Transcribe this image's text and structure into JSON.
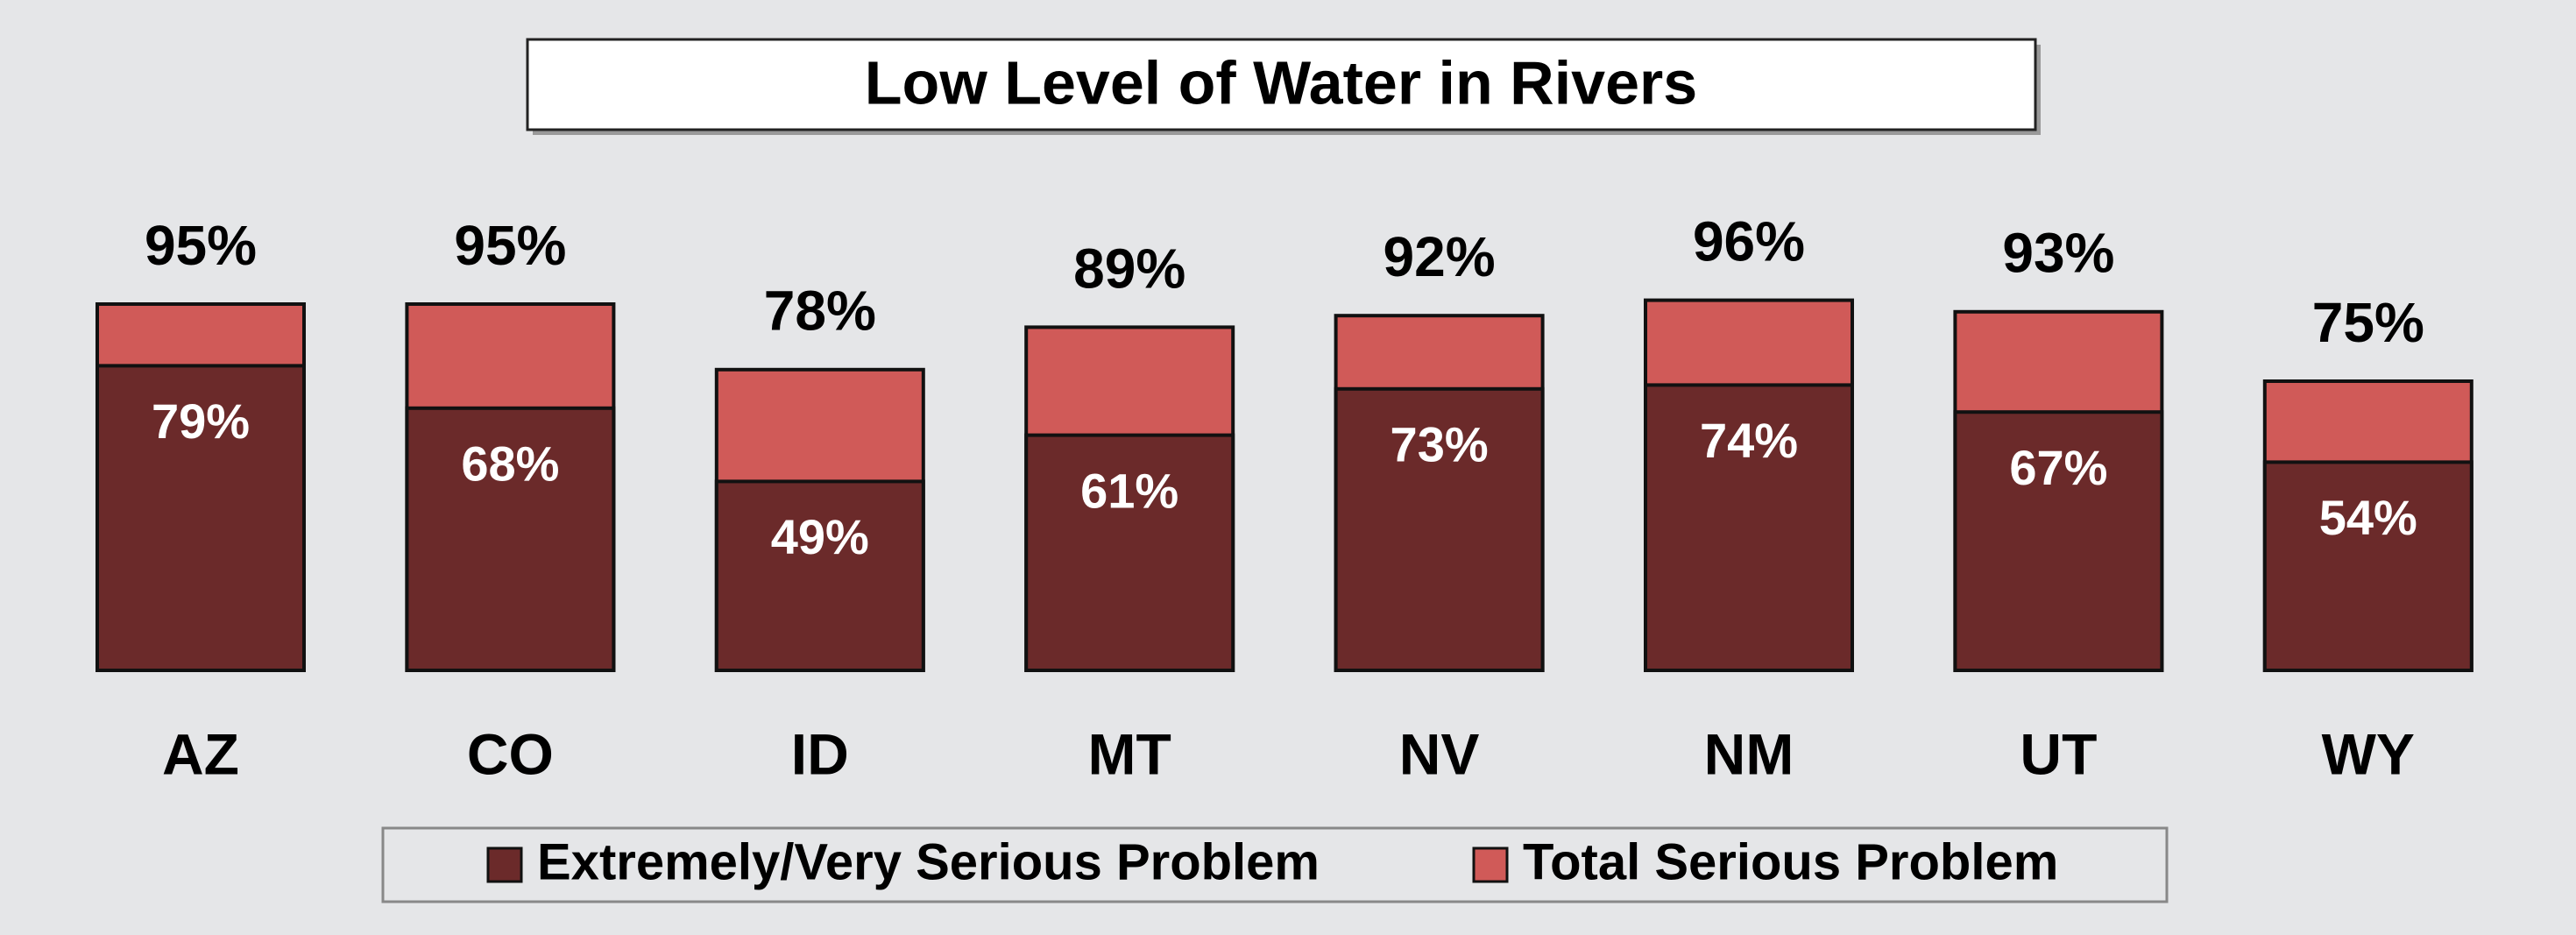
{
  "chart_data": {
    "type": "bar",
    "title": "Low Level of Water in Rivers",
    "categories": [
      "AZ",
      "CO",
      "ID",
      "MT",
      "NV",
      "NM",
      "UT",
      "WY"
    ],
    "series": [
      {
        "name": "Extremely/Very Serious Problem",
        "color": "#6b2a2a",
        "values": [
          79,
          68,
          49,
          61,
          73,
          74,
          67,
          54
        ],
        "value_labels": [
          "79%",
          "68%",
          "49%",
          "61%",
          "73%",
          "74%",
          "67%",
          "54%"
        ]
      },
      {
        "name": "Total Serious Problem",
        "color": "#d05a58",
        "values": [
          95,
          95,
          78,
          89,
          92,
          96,
          93,
          75
        ],
        "value_labels": [
          "95%",
          "95%",
          "78%",
          "89%",
          "92%",
          "96%",
          "93%",
          "75%"
        ]
      }
    ]
  }
}
